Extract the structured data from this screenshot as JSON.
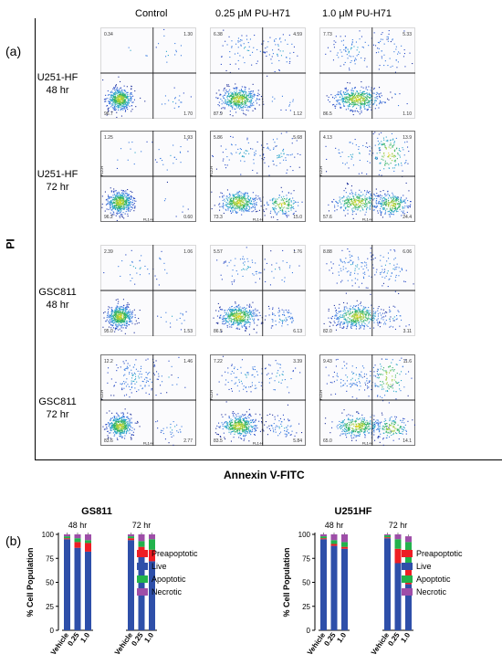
{
  "panel_a": {
    "letter": "(a)",
    "columns": [
      "Control",
      "0.25 μM PU-H71",
      "1.0 μM PU-H71"
    ],
    "rows": [
      {
        "name": "U251-HF",
        "time": "48 hr"
      },
      {
        "name": "U251-HF",
        "time": "72 hr"
      },
      {
        "name": "GSC811",
        "time": "48 hr"
      },
      {
        "name": "GSC811",
        "time": "72 hr"
      }
    ],
    "quadrant_values": [
      [
        [
          "0.34",
          "1.30",
          "96.7",
          "1.70"
        ],
        [
          "6.38",
          "4.59",
          "87.9",
          "1.12"
        ],
        [
          "7.73",
          "5.33",
          "86.5",
          "1.10"
        ]
      ],
      [
        [
          "1.25",
          "1.93",
          "96.2",
          "0.60"
        ],
        [
          "5.86",
          "5.68",
          "73.3",
          "15.0"
        ],
        [
          "4.13",
          "13.9",
          "57.6",
          "24.4"
        ]
      ],
      [
        [
          "2.39",
          "1.06",
          "95.0",
          "1.53"
        ],
        [
          "5.57",
          "1.76",
          "86.5",
          "6.13"
        ],
        [
          "8.88",
          "6.06",
          "82.0",
          "3.11"
        ]
      ],
      [
        [
          "12.2",
          "1.46",
          "83.6",
          "2.77"
        ],
        [
          "7.22",
          "3.39",
          "83.5",
          "5.84"
        ],
        [
          "9.43",
          "11.6",
          "65.0",
          "14.1"
        ]
      ]
    ],
    "fl_axis": {
      "x": "FL1-H",
      "y": "FL2-H"
    },
    "y_axis_label": "PI",
    "x_axis_label": "Annexin V-FITC"
  },
  "panel_b": {
    "letter": "(b)",
    "legend": [
      "Preapoptotic",
      "Live",
      "Apoptotic",
      "Necrotic"
    ],
    "colors": {
      "Preapoptotic": "#ee1d24",
      "Live": "#2e4fa9",
      "Apoptotic": "#22b24c",
      "Necrotic": "#9e4ea8"
    }
  },
  "chart_data": [
    {
      "type": "bar",
      "stacked": true,
      "title": "GS811",
      "ylabel": "% Cell Population",
      "ylim": [
        0,
        100
      ],
      "yticks": [
        0,
        25,
        50,
        75,
        100
      ],
      "groups": [
        "48 hr",
        "72 hr"
      ],
      "categories": [
        "Vehicle",
        "0.25",
        "1.0"
      ],
      "series": [
        {
          "name": "Live",
          "values": {
            "48 hr": [
              95,
              86,
              82
            ],
            "72 hr": [
              94,
              80,
              72
            ]
          }
        },
        {
          "name": "Preapoptotic",
          "values": {
            "48 hr": [
              1,
              6,
              9
            ],
            "72 hr": [
              2,
              7,
              12
            ]
          }
        },
        {
          "name": "Apoptotic",
          "values": {
            "48 hr": [
              2,
              4,
              3
            ],
            "72 hr": [
              2,
              6,
              11
            ]
          }
        },
        {
          "name": "Necrotic",
          "values": {
            "48 hr": [
              2,
              4,
              6
            ],
            "72 hr": [
              2,
              7,
              5
            ]
          }
        }
      ]
    },
    {
      "type": "bar",
      "stacked": true,
      "title": "U251HF",
      "ylabel": "% Cell Population",
      "ylim": [
        0,
        100
      ],
      "yticks": [
        0,
        25,
        50,
        75,
        100
      ],
      "groups": [
        "48 hr",
        "72 hr"
      ],
      "categories": [
        "Vehicle",
        "0.25",
        "1.0"
      ],
      "series": [
        {
          "name": "Live",
          "values": {
            "48 hr": [
              95,
              88,
              85
            ],
            "72 hr": [
              96,
              70,
              48
            ]
          }
        },
        {
          "name": "Preapoptotic",
          "values": {
            "48 hr": [
              1,
              2,
              2
            ],
            "72 hr": [
              1,
              15,
              21
            ]
          }
        },
        {
          "name": "Apoptotic",
          "values": {
            "48 hr": [
              2,
              4,
              5
            ],
            "72 hr": [
              2,
              10,
              23
            ]
          }
        },
        {
          "name": "Necrotic",
          "values": {
            "48 hr": [
              2,
              6,
              8
            ],
            "72 hr": [
              1,
              5,
              6
            ]
          }
        }
      ]
    }
  ]
}
